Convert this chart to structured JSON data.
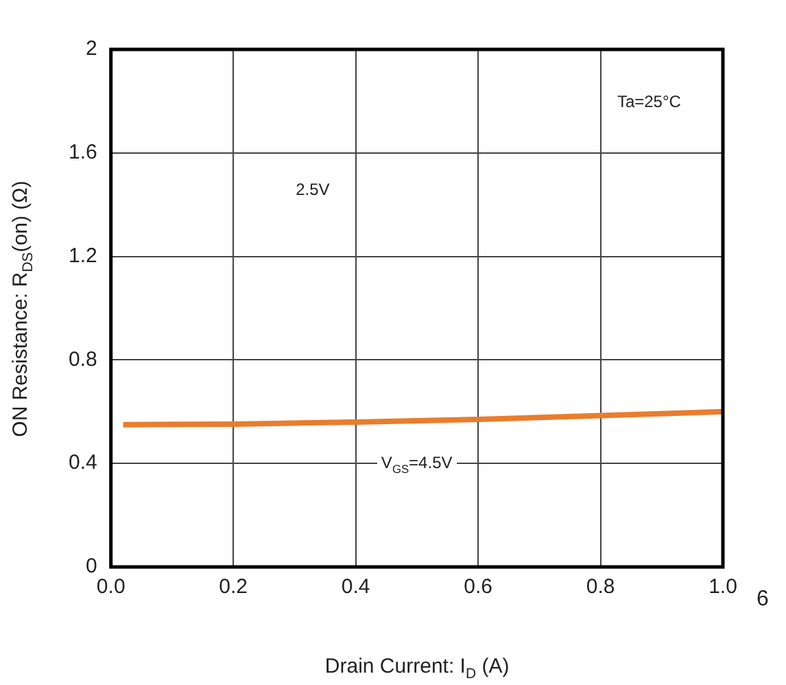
{
  "chart_data": {
    "type": "line",
    "xlabel": "Drain Current: I$_{D}$ (A)",
    "ylabel": "ON Resistance: R$_{DS}$(on) (Ω)",
    "x": [
      0.02,
      0.2,
      0.4,
      0.6,
      0.8,
      1.0
    ],
    "series": [
      {
        "color": "#e87d2e",
        "values": [
          0.55,
          0.552,
          0.56,
          0.57,
          0.585,
          0.6
        ]
      }
    ],
    "xlim": [
      0,
      1
    ],
    "xticks": [
      {
        "value": 0,
        "label": "0.0"
      },
      {
        "value": 0.2,
        "label": "0.2"
      },
      {
        "value": 0.4,
        "label": "0.4"
      },
      {
        "value": 0.6,
        "label": "0.6"
      },
      {
        "value": 0.8,
        "label": "0.8"
      },
      {
        "value": 1,
        "label": "1.0"
      }
    ],
    "ylim": [
      0,
      2
    ],
    "yticks": [
      0,
      0.4,
      0.8,
      1.2,
      1.6,
      2
    ],
    "grid": true,
    "marker": "none",
    "line_style": "solid",
    "annotations": [
      "Ta=25°C",
      "2.5V",
      "V$_{GS}$=4.5V",
      "6"
    ]
  }
}
